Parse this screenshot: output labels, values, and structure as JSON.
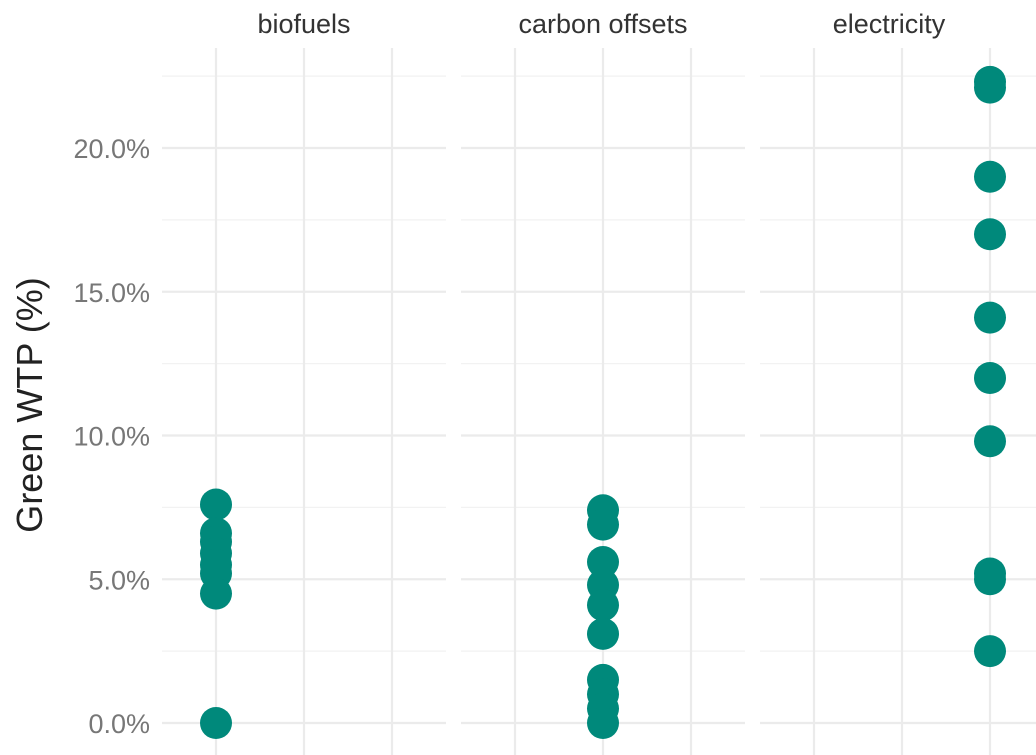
{
  "chart_data": {
    "type": "scatter",
    "title": "",
    "ylabel": "Green WTP (%)",
    "xlabel": "",
    "ylim": [
      0,
      23.0
    ],
    "y_ticks": [
      0,
      5,
      10,
      15,
      20
    ],
    "y_tick_labels": [
      "0.0%",
      "5.0%",
      "10.0%",
      "15.0%",
      "20.0%"
    ],
    "grid": true,
    "point_color": "#00897b",
    "facets": [
      {
        "name": "biofuels",
        "series": [
          {
            "x_slot": 1,
            "values": [
              7.6,
              6.6,
              6.3,
              5.9,
              5.5,
              5.2,
              4.5,
              0.0
            ]
          }
        ]
      },
      {
        "name": "carbon offsets",
        "series": [
          {
            "x_slot": 2,
            "values": [
              7.4,
              6.9,
              5.6,
              4.8,
              4.1,
              3.1,
              1.5,
              1.0,
              0.5,
              0.0
            ]
          }
        ]
      },
      {
        "name": "electricity",
        "series": [
          {
            "x_slot": 3,
            "values": [
              22.3,
              22.1,
              19.0,
              17.0,
              14.1,
              12.0,
              9.8,
              5.2,
              5.0,
              2.5
            ]
          }
        ]
      }
    ]
  }
}
